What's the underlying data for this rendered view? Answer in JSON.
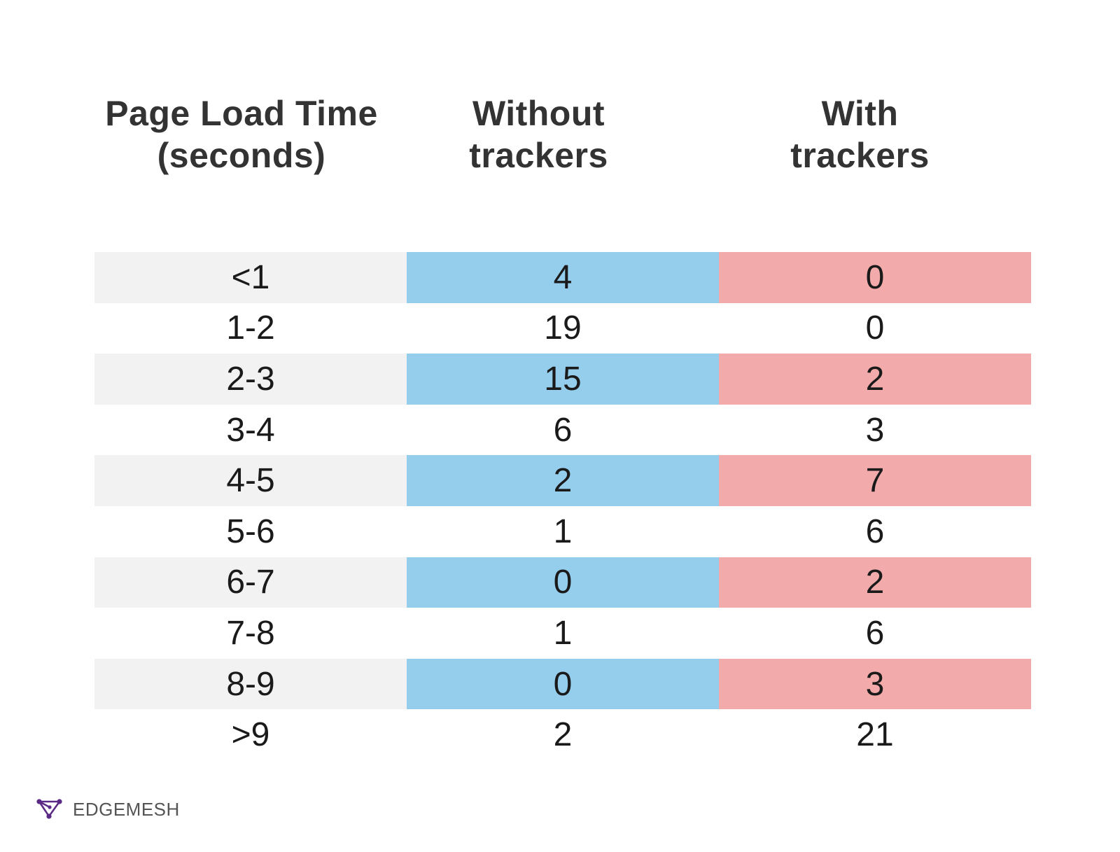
{
  "chart_data": {
    "type": "table",
    "columns": [
      "Page Load Time\n(seconds)",
      "Without\ntrackers",
      "With\ntrackers"
    ],
    "rows": [
      [
        "<1",
        "4",
        "0"
      ],
      [
        "1-2",
        "19",
        "0"
      ],
      [
        "2-3",
        "15",
        "2"
      ],
      [
        "3-4",
        "6",
        "3"
      ],
      [
        "4-5",
        "2",
        "7"
      ],
      [
        "5-6",
        "1",
        "6"
      ],
      [
        "6-7",
        "0",
        "2"
      ],
      [
        "7-8",
        "1",
        "6"
      ],
      [
        "8-9",
        "0",
        "3"
      ],
      [
        ">9",
        "2",
        "21"
      ]
    ],
    "series_colors": {
      "label_shade": "#f2f2f2",
      "without_trackers": "#95cdec",
      "with_trackers": "#f3aaaa"
    }
  },
  "brand": {
    "name": "EDGEMESH",
    "icon": "edgemesh-logo-icon",
    "color": "#5b2a86"
  }
}
